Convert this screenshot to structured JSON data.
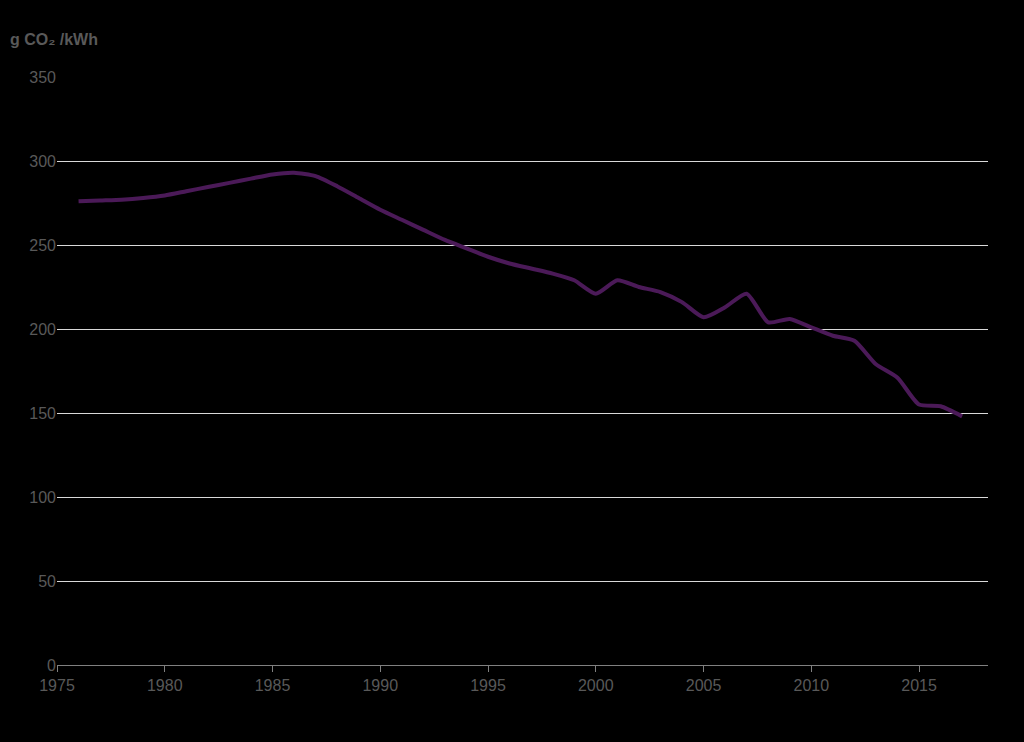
{
  "chart_data": {
    "type": "line",
    "y_label": "g CO₂ /kWh",
    "x": [
      1976,
      1977,
      1978,
      1979,
      1980,
      1981,
      1982,
      1983,
      1984,
      1985,
      1986,
      1987,
      1988,
      1989,
      1990,
      1991,
      1992,
      1993,
      1994,
      1995,
      1996,
      1997,
      1998,
      1999,
      2000,
      2001,
      2002,
      2003,
      2004,
      2005,
      2006,
      2007,
      2008,
      2009,
      2010,
      2011,
      2012,
      2013,
      2014,
      2015,
      2016,
      2017
    ],
    "values": [
      276,
      276.5,
      277,
      278,
      279.5,
      282,
      284.5,
      287,
      289.5,
      292,
      293,
      291,
      285,
      278,
      271,
      265,
      259,
      253,
      248,
      243,
      239,
      236,
      233,
      229,
      221,
      229,
      225,
      222,
      216,
      207,
      213,
      221,
      204,
      206,
      201,
      196,
      193,
      179,
      171,
      155,
      154,
      148
    ],
    "color": "#4b1a58",
    "xlim": [
      1975,
      2018.2
    ],
    "xticks": [
      1975,
      1980,
      1985,
      1990,
      1995,
      2000,
      2005,
      2010,
      2015
    ],
    "ylim": [
      0,
      350
    ],
    "yticks": [
      0,
      50,
      100,
      150,
      200,
      250,
      300,
      350
    ],
    "grid": true
  }
}
